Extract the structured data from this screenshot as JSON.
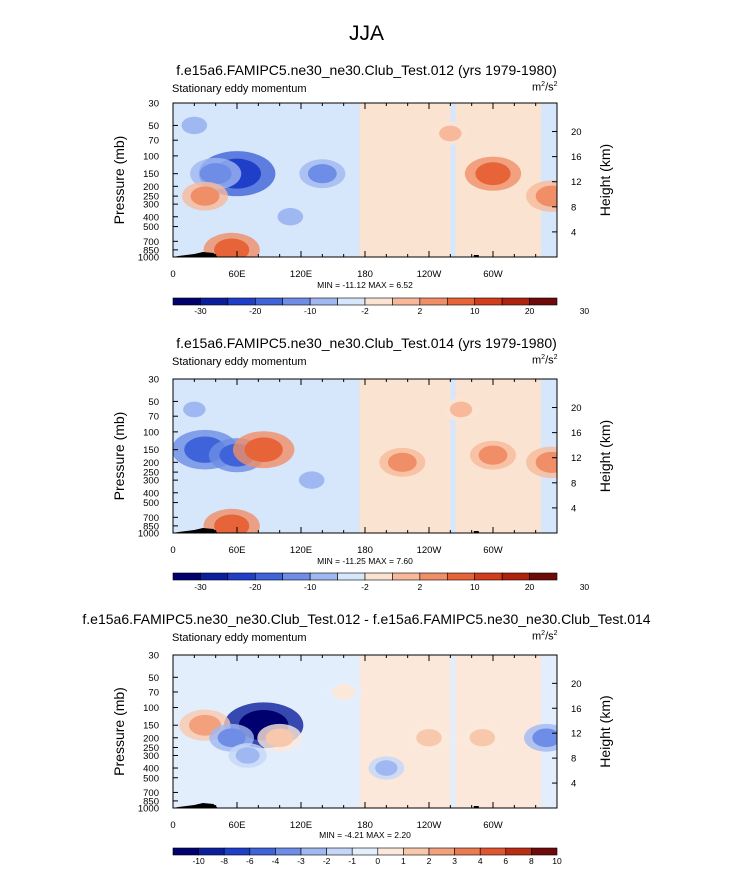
{
  "page": {
    "title": "JJA"
  },
  "chart_data": [
    {
      "type": "heatmap",
      "title": "f.e15a6.FAMIPC5.ne30_ne30.Club_Test.012 (yrs 1979-1980)",
      "subtitle": "Stationary eddy momentum",
      "units": {
        "base": "m",
        "exp1": "2",
        "mid": "/s",
        "exp2": "2"
      },
      "ylabel": "Pressure (mb)",
      "ylabel_right": "Height (km)",
      "y_ticks": [
        "30",
        "50",
        "70",
        "100",
        "150",
        "200",
        "250",
        "300",
        "400",
        "500",
        "700",
        "850",
        "1000"
      ],
      "y_ticks_right": [
        "4",
        "8",
        "12",
        "16",
        "20"
      ],
      "x_ticks": [
        "0",
        "60E",
        "120E",
        "180",
        "120W",
        "60W"
      ],
      "stats": "MIN = -11.12  MAX =   6.52",
      "colorbar_labels": [
        "-30",
        "-20",
        "-10",
        "-2",
        "2",
        "10",
        "20",
        "30"
      ],
      "min": -11.12,
      "max": 6.52,
      "blobs": [
        {
          "lon": 60,
          "p": 150,
          "v": -10
        },
        {
          "lon": 40,
          "p": 150,
          "v": -5
        },
        {
          "lon": 140,
          "p": 150,
          "v": -4
        },
        {
          "lon": 300,
          "p": 150,
          "v": 6
        },
        {
          "lon": 30,
          "p": 250,
          "v": 4
        },
        {
          "lon": 355,
          "p": 250,
          "v": 5
        },
        {
          "lon": 55,
          "p": 850,
          "v": 6
        },
        {
          "lon": 110,
          "p": 400,
          "v": -3
        },
        {
          "lon": 20,
          "p": 50,
          "v": -3
        },
        {
          "lon": 260,
          "p": 60,
          "v": 2
        }
      ]
    },
    {
      "type": "heatmap",
      "title": "f.e15a6.FAMIPC5.ne30_ne30.Club_Test.014 (yrs 1979-1980)",
      "subtitle": "Stationary eddy momentum",
      "units": {
        "base": "m",
        "exp1": "2",
        "mid": "/s",
        "exp2": "2"
      },
      "ylabel": "Pressure (mb)",
      "ylabel_right": "Height (km)",
      "y_ticks": [
        "30",
        "50",
        "70",
        "100",
        "150",
        "200",
        "250",
        "300",
        "400",
        "500",
        "700",
        "850",
        "1000"
      ],
      "y_ticks_right": [
        "4",
        "8",
        "12",
        "16",
        "20"
      ],
      "x_ticks": [
        "0",
        "60E",
        "120E",
        "180",
        "120W",
        "60W"
      ],
      "stats": "MIN = -11.25  MAX =   7.60",
      "colorbar_labels": [
        "-30",
        "-20",
        "-10",
        "-2",
        "2",
        "10",
        "20",
        "30"
      ],
      "min": -11.25,
      "max": 7.6,
      "blobs": [
        {
          "lon": 30,
          "p": 150,
          "v": -8
        },
        {
          "lon": 60,
          "p": 170,
          "v": -6
        },
        {
          "lon": 85,
          "p": 150,
          "v": 7
        },
        {
          "lon": 215,
          "p": 200,
          "v": 4
        },
        {
          "lon": 300,
          "p": 170,
          "v": 4
        },
        {
          "lon": 355,
          "p": 200,
          "v": 5
        },
        {
          "lon": 55,
          "p": 850,
          "v": 6
        },
        {
          "lon": 130,
          "p": 300,
          "v": -3
        },
        {
          "lon": 20,
          "p": 60,
          "v": -2
        },
        {
          "lon": 270,
          "p": 60,
          "v": 2
        }
      ]
    },
    {
      "type": "heatmap",
      "title": "f.e15a6.FAMIPC5.ne30_ne30.Club_Test.012 - f.e15a6.FAMIPC5.ne30_ne30.Club_Test.014",
      "subtitle": "Stationary eddy momentum",
      "units": {
        "base": "m",
        "exp1": "2",
        "mid": "/s",
        "exp2": "2"
      },
      "ylabel": "Pressure (mb)",
      "ylabel_right": "Height (km)",
      "y_ticks": [
        "30",
        "50",
        "70",
        "100",
        "150",
        "200",
        "250",
        "300",
        "400",
        "500",
        "700",
        "850",
        "1000"
      ],
      "y_ticks_right": [
        "4",
        "8",
        "12",
        "16",
        "20"
      ],
      "x_ticks": [
        "0",
        "60E",
        "120E",
        "180",
        "120W",
        "60W"
      ],
      "stats": "MIN =  -4.21  MAX =   2.20",
      "colorbar_labels": [
        "-10",
        "-8",
        "-6",
        "-4",
        "-3",
        "-2",
        "-1",
        "0",
        "1",
        "2",
        "3",
        "4",
        "6",
        "8",
        "10"
      ],
      "min": -4.21,
      "max": 2.2,
      "blobs": [
        {
          "lon": 85,
          "p": 150,
          "v": -4.2
        },
        {
          "lon": 30,
          "p": 150,
          "v": 2
        },
        {
          "lon": 55,
          "p": 200,
          "v": -1.5
        },
        {
          "lon": 100,
          "p": 200,
          "v": 1.5
        },
        {
          "lon": 240,
          "p": 200,
          "v": 1.2
        },
        {
          "lon": 290,
          "p": 200,
          "v": 1.2
        },
        {
          "lon": 350,
          "p": 200,
          "v": -1.5
        },
        {
          "lon": 70,
          "p": 300,
          "v": -1
        },
        {
          "lon": 160,
          "p": 70,
          "v": 0.8
        },
        {
          "lon": 200,
          "p": 400,
          "v": -0.8
        }
      ]
    }
  ],
  "colormaps": {
    "main": [
      "#00006e",
      "#0b1f9e",
      "#1f3fc8",
      "#3f63d8",
      "#6d8de6",
      "#a0b8f2",
      "#d6e6fb",
      "#fbe3d2",
      "#f7b99a",
      "#f08e68",
      "#e66438",
      "#d23d1c",
      "#ae230e",
      "#6e0a0a"
    ],
    "diff": [
      "#00006e",
      "#0b1f9e",
      "#1f3fc8",
      "#3f63d8",
      "#6d8de6",
      "#a0b8f2",
      "#c4d7f7",
      "#e3eefc",
      "#fbe8db",
      "#f8c8ad",
      "#f3a07d",
      "#e97a52",
      "#de5530",
      "#b82d14",
      "#6e0a0a"
    ]
  }
}
